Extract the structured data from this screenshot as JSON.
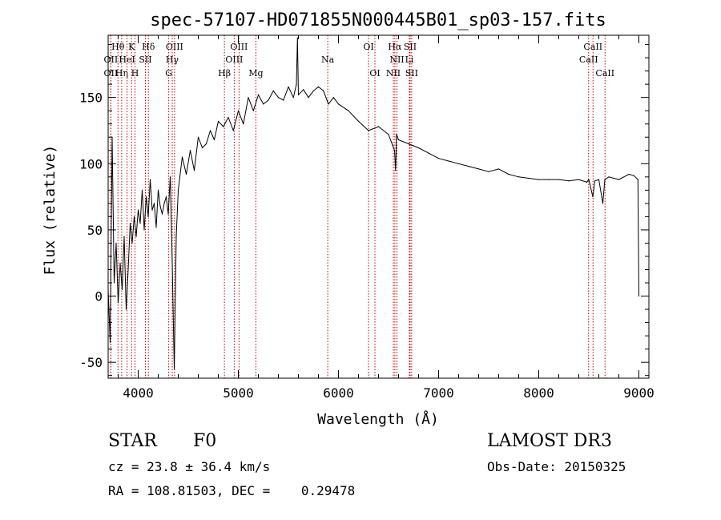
{
  "chart_data": {
    "type": "line",
    "title": "spec-57107-HD071855N000445B01_sp03-157.fits",
    "xlabel": "Wavelength (Å)",
    "ylabel": "Flux (relative)",
    "xlim": [
      3700,
      9100
    ],
    "ylim": [
      -62,
      197
    ],
    "xticks": [
      4000,
      5000,
      6000,
      7000,
      8000,
      9000
    ],
    "yticks": [
      -50,
      0,
      50,
      100,
      150
    ],
    "grid": false,
    "series": [
      {
        "x": [
          3700,
          3720,
          3740,
          3760,
          3780,
          3800,
          3820,
          3840,
          3860,
          3880,
          3900,
          3920,
          3940,
          3960,
          3980,
          4000,
          4020,
          4040,
          4060,
          4080,
          4100,
          4120,
          4140,
          4160,
          4180,
          4200,
          4220,
          4240,
          4260,
          4280,
          4300,
          4320,
          4340,
          4360,
          4380,
          4400,
          4440,
          4480,
          4520,
          4560,
          4600,
          4640,
          4680,
          4720,
          4760,
          4800,
          4850,
          4900,
          4950,
          5000,
          5050,
          5100,
          5150,
          5200,
          5250,
          5300,
          5350,
          5400,
          5450,
          5500,
          5550,
          5580,
          5590,
          5600,
          5650,
          5700,
          5750,
          5800,
          5850,
          5900,
          5950,
          6000,
          6100,
          6200,
          6300,
          6400,
          6500,
          6560,
          6570,
          6580,
          6600,
          6700,
          6800,
          6900,
          7000,
          7100,
          7200,
          7300,
          7400,
          7500,
          7600,
          7700,
          7800,
          7900,
          8000,
          8100,
          8200,
          8300,
          8400,
          8480,
          8500,
          8540,
          8560,
          8600,
          8640,
          8660,
          8700,
          8750,
          8800,
          8850,
          8900,
          8950,
          8990,
          9000
        ],
        "values": [
          5,
          -35,
          120,
          10,
          40,
          -5,
          25,
          5,
          45,
          -10,
          20,
          55,
          40,
          60,
          45,
          65,
          55,
          80,
          50,
          75,
          60,
          88,
          65,
          70,
          52,
          80,
          68,
          62,
          70,
          75,
          62,
          90,
          25,
          -55,
          45,
          80,
          105,
          92,
          110,
          95,
          120,
          112,
          115,
          125,
          118,
          132,
          128,
          135,
          125,
          140,
          130,
          150,
          140,
          152,
          145,
          148,
          155,
          150,
          148,
          158,
          150,
          160,
          195,
          152,
          156,
          150,
          155,
          158,
          155,
          145,
          150,
          145,
          140,
          132,
          125,
          128,
          122,
          110,
          95,
          122,
          118,
          115,
          112,
          108,
          104,
          102,
          100,
          98,
          96,
          94,
          96,
          92,
          90,
          89,
          88,
          88,
          88,
          87,
          88,
          86,
          88,
          75,
          87,
          88,
          70,
          88,
          90,
          89,
          88,
          90,
          92,
          91,
          88,
          0
        ]
      }
    ],
    "line_colors": {
      "spectrum": "#000000",
      "markers": "#c00000"
    },
    "line_markers": [
      {
        "label": "Hθ",
        "x": 3798,
        "row": 1
      },
      {
        "label": "OII",
        "x": 3727,
        "row": 2
      },
      {
        "label": "OII",
        "x": 3727,
        "row": 3
      },
      {
        "label": "Hη",
        "x": 3835,
        "row": 3
      },
      {
        "label": "K",
        "x": 3934,
        "row": 1
      },
      {
        "label": "HeI",
        "x": 3889,
        "row": 2
      },
      {
        "label": "H",
        "x": 3968,
        "row": 3
      },
      {
        "label": "SII",
        "x": 4072,
        "row": 2
      },
      {
        "label": "Hδ",
        "x": 4102,
        "row": 1
      },
      {
        "label": "OIII",
        "x": 4363,
        "row": 1
      },
      {
        "label": "Hγ",
        "x": 4340,
        "row": 2
      },
      {
        "label": "G",
        "x": 4305,
        "row": 3
      },
      {
        "label": "OIII",
        "x": 5007,
        "row": 1
      },
      {
        "label": "OIII",
        "x": 4959,
        "row": 2
      },
      {
        "label": "Hβ",
        "x": 4861,
        "row": 3
      },
      {
        "label": "Mg",
        "x": 5175,
        "row": 3
      },
      {
        "label": "Na",
        "x": 5893,
        "row": 2
      },
      {
        "label": "OI",
        "x": 6300,
        "row": 1
      },
      {
        "label": "OI",
        "x": 6364,
        "row": 3
      },
      {
        "label": "Hα",
        "x": 6563,
        "row": 1
      },
      {
        "label": "SII",
        "x": 6716,
        "row": 1
      },
      {
        "label": "NII",
        "x": 6584,
        "row": 2
      },
      {
        "label": "Li",
        "x": 6708,
        "row": 2
      },
      {
        "label": "NII",
        "x": 6548,
        "row": 3
      },
      {
        "label": "SII",
        "x": 6731,
        "row": 3
      },
      {
        "label": "CaII",
        "x": 8542,
        "row": 1
      },
      {
        "label": "CaII",
        "x": 8498,
        "row": 2
      },
      {
        "label": "CaII",
        "x": 8662,
        "row": 3
      }
    ]
  },
  "info": {
    "object_class": "STAR",
    "subclass": "F0",
    "survey": "LAMOST DR3",
    "redshift": "cz = 23.8 ± 36.4 km/s",
    "obs_date": "Obs-Date: 20150325",
    "coords": "RA = 108.81503, DEC =    0.29478"
  }
}
